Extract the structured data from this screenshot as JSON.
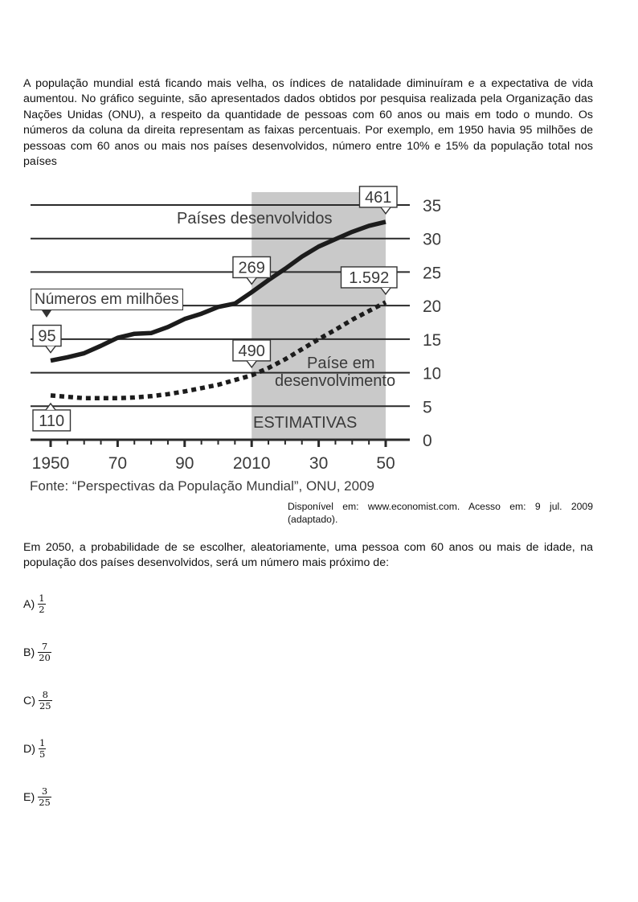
{
  "intro_text": "A população mundial está ficando mais velha, os índices de natalidade diminuíram e a expectativa de vida aumentou. No gráfico seguinte, são apresentados dados obtidos por pesquisa realizada pela Organização das Nações Unidas (ONU), a respeito da quantidade de pessoas com 60 anos ou mais em todo o mundo. Os números da coluna da direita representam as faixas percentuais. Por exemplo, em 1950 havia 95 milhões de pessoas com 60 anos ou mais nos países desenvolvidos, número entre 10% e 15% da população total nos países",
  "chart_data": {
    "type": "line",
    "shaded_region": {
      "label": "ESTIMATIVAS",
      "x_range": [
        2010,
        2050
      ]
    },
    "x_ticks": [
      "1950",
      "70",
      "90",
      "2010",
      "30",
      "50"
    ],
    "x_tick_values": [
      1950,
      1970,
      1990,
      2010,
      2030,
      2050
    ],
    "xlim": [
      1950,
      2050
    ],
    "y_ticks": [
      "0",
      "5",
      "10",
      "15",
      "20",
      "25",
      "30",
      "35"
    ],
    "y_tick_values": [
      0,
      5,
      10,
      15,
      20,
      25,
      30,
      35
    ],
    "ylim": [
      0,
      35
    ],
    "y_axis_side": "right",
    "grid": true,
    "units_label": "Números em milhões",
    "series": [
      {
        "name": "Países desenvolvidos",
        "style": "solid",
        "x": [
          1950,
          1955,
          1960,
          1965,
          1970,
          1975,
          1980,
          1985,
          1990,
          1995,
          2000,
          2005,
          2010,
          2015,
          2020,
          2025,
          2030,
          2035,
          2040,
          2045,
          2050
        ],
        "y": [
          11.8,
          12.3,
          12.9,
          14.0,
          15.2,
          15.8,
          15.9,
          16.8,
          18.0,
          18.8,
          19.8,
          20.3,
          22.0,
          23.8,
          25.5,
          27.3,
          28.8,
          29.9,
          31.0,
          31.9,
          32.5
        ],
        "callouts": [
          {
            "x": 1950,
            "y": 11.8,
            "label": "95"
          },
          {
            "x": 2010,
            "y": 22.0,
            "label": "269"
          },
          {
            "x": 2050,
            "y": 32.5,
            "label": "461"
          }
        ]
      },
      {
        "name": "Paíse em desenvolvimento",
        "style": "dotted",
        "x": [
          1950,
          1955,
          1960,
          1965,
          1970,
          1975,
          1980,
          1985,
          1990,
          1995,
          2000,
          2005,
          2010,
          2015,
          2020,
          2025,
          2030,
          2035,
          2040,
          2045,
          2050
        ],
        "y": [
          6.6,
          6.4,
          6.2,
          6.2,
          6.2,
          6.3,
          6.5,
          6.8,
          7.2,
          7.7,
          8.2,
          8.9,
          9.6,
          10.7,
          12.0,
          13.5,
          15.0,
          16.4,
          17.9,
          19.2,
          20.5
        ],
        "callouts": [
          {
            "x": 1950,
            "y": 6.6,
            "label": "110"
          },
          {
            "x": 2010,
            "y": 9.6,
            "label": "490"
          },
          {
            "x": 2050,
            "y": 20.5,
            "label": "1.592"
          }
        ]
      }
    ],
    "series_labels": {
      "developed": "Países desenvolvidos",
      "developing_line1": "Paíse em",
      "developing_line2": "desenvolvimento"
    },
    "source_note": "Fonte: “Perspectivas da População Mundial”, ONU, 2009"
  },
  "source_text": "Disponível em: www.economist.com. Acesso em: 9 jul. 2009 (adaptado).",
  "question_text": "Em 2050, a probabilidade de se escolher, aleatoriamente, uma pessoa com 60 anos ou mais de idade, na população dos países desenvolvidos, será um número mais próximo de:",
  "options": [
    {
      "letter": "A)",
      "numerator": "1",
      "denominator": "2"
    },
    {
      "letter": "B)",
      "numerator": "7",
      "denominator": "20"
    },
    {
      "letter": "C)",
      "numerator": "8",
      "denominator": "25"
    },
    {
      "letter": "D)",
      "numerator": "1",
      "denominator": "5"
    },
    {
      "letter": "E)",
      "numerator": "3",
      "denominator": "25"
    }
  ]
}
